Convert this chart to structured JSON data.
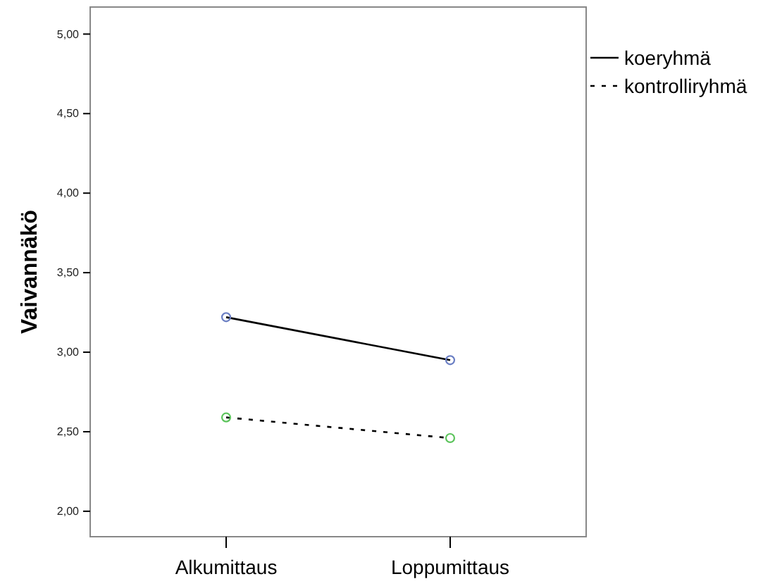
{
  "chart_data": {
    "type": "line",
    "ylabel": "Vaivannäkö",
    "categories": [
      "Alkumittaus",
      "Loppumittaus"
    ],
    "series": [
      {
        "name": "koeryhmä",
        "color": "#000000",
        "colors": [
          "#6b7fc4",
          "#6b7fc4"
        ],
        "line_style": "solid",
        "values": [
          3.22,
          2.95
        ]
      },
      {
        "name": "kontrolliryhmä",
        "color": "#000000",
        "colors": [
          "#5cc45c",
          "#5cc45c"
        ],
        "line_style": "dashed",
        "values": [
          2.59,
          2.46
        ]
      }
    ],
    "ylim": [
      1.84,
      5.17
    ],
    "yticks": [
      {
        "value": 2,
        "label": "2,00"
      },
      {
        "value": 2.5,
        "label": "2,50"
      },
      {
        "value": 3,
        "label": "3,00"
      },
      {
        "value": 3.5,
        "label": "3,50"
      },
      {
        "value": 4,
        "label": "4,00"
      },
      {
        "value": 4.5,
        "label": "4,50"
      },
      {
        "value": 5,
        "label": "5,00"
      }
    ],
    "grid": false,
    "legend": "top right",
    "marker": "circle"
  }
}
